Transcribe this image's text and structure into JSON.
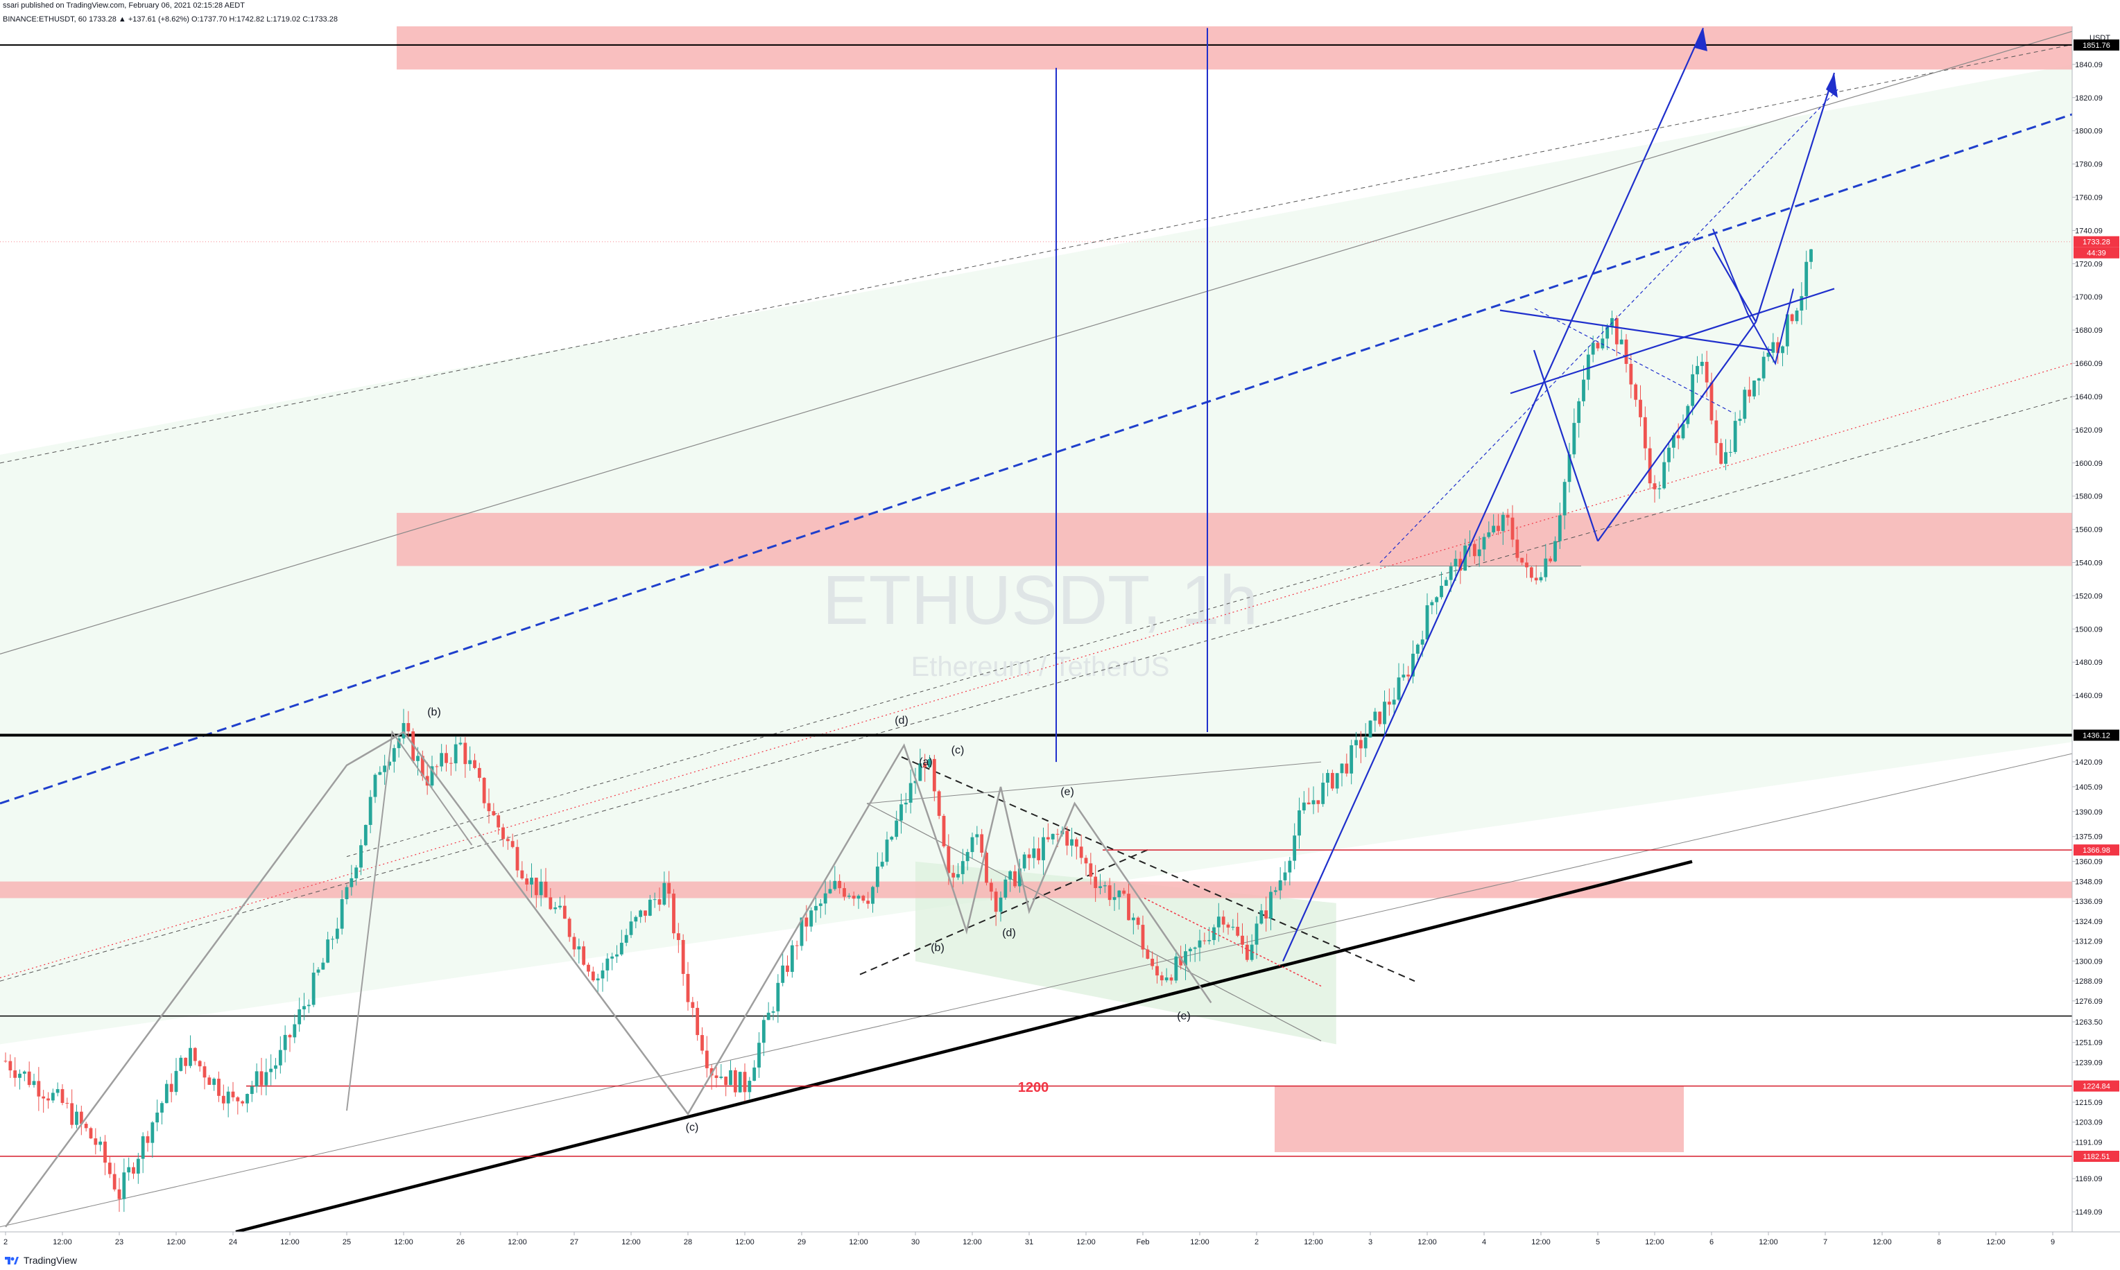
{
  "header": {
    "published": "ssari published on TradingView.com, February 06, 2021 02:15:28 AEDT",
    "ohlc": "BINANCE:ETHUSDT, 60  1733.28  ▲ +137.61 (+8.62%)  O:1737.70  H:1742.82  L:1719.02  C:1733.28"
  },
  "footer": {
    "brand": "TradingView"
  },
  "chart_data": {
    "type": "candlestick",
    "symbol": "ETHUSDT",
    "interval": "1h",
    "watermark_title": "ETHUSDT, 1h",
    "watermark_subtitle": "Ethereum / TetherUS",
    "ylabel": "USDT",
    "ylim": [
      1137,
      1863
    ],
    "y_ticks": [
      1149.09,
      1169.09,
      1191.09,
      1203.09,
      1215.09,
      1239.09,
      1251.09,
      1263.5,
      1276.09,
      1288.09,
      1300.09,
      1312.09,
      1324.09,
      1336.09,
      1348.09,
      1360.09,
      1375.09,
      1390.09,
      1405.09,
      1420.09,
      1460.09,
      1480.09,
      1500.09,
      1520.09,
      1540.09,
      1560.09,
      1580.09,
      1600.09,
      1620.09,
      1640.09,
      1660.09,
      1680.09,
      1700.09,
      1720.09,
      1740.09,
      1760.09,
      1780.09,
      1800.09,
      1820.09,
      1840.09
    ],
    "x_ticks": [
      "2",
      "12:00",
      "23",
      "12:00",
      "24",
      "12:00",
      "25",
      "12:00",
      "26",
      "12:00",
      "27",
      "12:00",
      "28",
      "12:00",
      "29",
      "12:00",
      "30",
      "12:00",
      "31",
      "12:00",
      "Feb",
      "12:00",
      "2",
      "12:00",
      "3",
      "12:00",
      "4",
      "12:00",
      "5",
      "12:00",
      "6",
      "12:00",
      "7",
      "12:00",
      "8",
      "12:00",
      "9"
    ],
    "price_labels": [
      {
        "value": 1851.76,
        "color": "#000000"
      },
      {
        "value": 1733.28,
        "color": "#f23645"
      },
      {
        "value": 1436.12,
        "color": "#000000"
      },
      {
        "value": 1366.98,
        "color": "#f23645"
      },
      {
        "value": 1224.84,
        "color": "#f23645"
      },
      {
        "value": 1182.51,
        "color": "#f23645"
      }
    ],
    "countdown_label": "44:39",
    "current_price": 1733.28,
    "horizontal_levels": [
      1851.76,
      1436.12,
      1366.98,
      1267,
      1224.84,
      1182.51
    ],
    "zones": [
      {
        "from": 1837,
        "to": 1863
      },
      {
        "from": 1538,
        "to": 1570
      },
      {
        "from": 1338,
        "to": 1348
      },
      {
        "from": 1185,
        "to": 1225
      }
    ],
    "zone_label": "1200",
    "wave_labels": [
      "(b)",
      "(c)",
      "(d)",
      "(a)",
      "(b)",
      "(c)",
      "(d)",
      "(e)",
      "(e)"
    ],
    "candles_close_path": [
      [
        22.0,
        1240
      ],
      [
        22.5,
        1214
      ],
      [
        22.8,
        1190
      ],
      [
        23.0,
        1160
      ],
      [
        23.3,
        1205
      ],
      [
        23.6,
        1245
      ],
      [
        24.0,
        1215
      ],
      [
        24.4,
        1240
      ],
      [
        24.8,
        1300
      ],
      [
        25.0,
        1340
      ],
      [
        25.3,
        1420
      ],
      [
        25.5,
        1438
      ],
      [
        25.7,
        1410
      ],
      [
        26.0,
        1430
      ],
      [
        26.3,
        1385
      ],
      [
        26.6,
        1350
      ],
      [
        26.9,
        1325
      ],
      [
        27.2,
        1290
      ],
      [
        27.5,
        1320
      ],
      [
        27.8,
        1345
      ],
      [
        28.0,
        1280
      ],
      [
        28.2,
        1235
      ],
      [
        28.5,
        1225
      ],
      [
        28.8,
        1285
      ],
      [
        29.0,
        1320
      ],
      [
        29.3,
        1345
      ],
      [
        29.6,
        1340
      ],
      [
        29.9,
        1395
      ],
      [
        30.1,
        1425
      ],
      [
        30.3,
        1345
      ],
      [
        30.5,
        1380
      ],
      [
        30.7,
        1336
      ],
      [
        31.0,
        1362
      ],
      [
        31.3,
        1378
      ],
      [
        31.6,
        1348
      ],
      [
        31.9,
        1330
      ],
      [
        32.1,
        1290
      ],
      [
        32.4,
        1300
      ],
      [
        32.7,
        1330
      ],
      [
        32.9,
        1305
      ],
      [
        33.2,
        1348
      ],
      [
        33.4,
        1390
      ],
      [
        33.6,
        1405
      ],
      [
        33.8,
        1420
      ],
      [
        34.0,
        1440
      ],
      [
        34.3,
        1470
      ],
      [
        34.6,
        1528
      ],
      [
        34.9,
        1548
      ],
      [
        35.2,
        1565
      ],
      [
        35.4,
        1528
      ],
      [
        35.6,
        1548
      ],
      [
        35.9,
        1660
      ],
      [
        36.1,
        1690
      ],
      [
        36.3,
        1650
      ],
      [
        36.5,
        1580
      ],
      [
        36.7,
        1620
      ],
      [
        36.9,
        1660
      ],
      [
        37.1,
        1600
      ],
      [
        37.3,
        1640
      ],
      [
        37.5,
        1670
      ],
      [
        37.6,
        1672
      ],
      [
        37.8,
        1705
      ],
      [
        37.9,
        1733
      ]
    ]
  }
}
